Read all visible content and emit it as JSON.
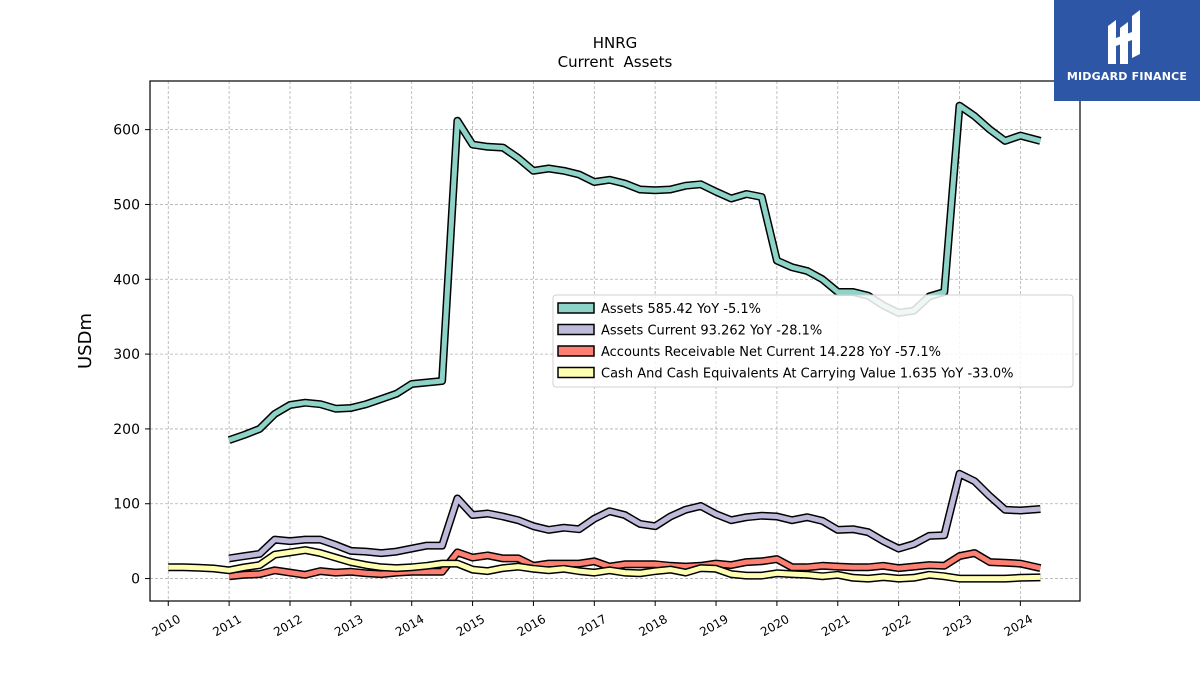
{
  "brand": {
    "name": "MIDGARD FINANCE",
    "logo_icon": "midgard-logo-icon",
    "background": "#2d57a6"
  },
  "chart_data": {
    "type": "line",
    "title": "HNRG",
    "subtitle": "Current  Assets",
    "ylabel": "USDm",
    "xlabel": "",
    "xlim": [
      2009.7,
      2024.98
    ],
    "ylim": [
      -30,
      665
    ],
    "x_ticks": [
      2010,
      2011,
      2012,
      2013,
      2014,
      2015,
      2016,
      2017,
      2018,
      2019,
      2020,
      2021,
      2022,
      2023,
      2024
    ],
    "x_tick_labels": [
      "2010",
      "2011",
      "2012",
      "2013",
      "2014",
      "2015",
      "2016",
      "2017",
      "2018",
      "2019",
      "2020",
      "2021",
      "2022",
      "2023",
      "2024"
    ],
    "y_ticks": [
      0,
      100,
      200,
      300,
      400,
      500,
      600
    ],
    "y_tick_labels": [
      "0",
      "100",
      "200",
      "300",
      "400",
      "500",
      "600"
    ],
    "grid": true,
    "legend_position": "center-right",
    "series": [
      {
        "name": "Assets",
        "legend_label": "Assets  585.42 YoY -5.1%",
        "color": "#8dd3c7",
        "points": [
          [
            2011.0,
            185
          ],
          [
            2011.25,
            192
          ],
          [
            2011.5,
            200
          ],
          [
            2011.75,
            220
          ],
          [
            2012.0,
            232
          ],
          [
            2012.25,
            235
          ],
          [
            2012.5,
            233
          ],
          [
            2012.75,
            227
          ],
          [
            2013.0,
            228
          ],
          [
            2013.25,
            233
          ],
          [
            2013.5,
            240
          ],
          [
            2013.75,
            247
          ],
          [
            2014.0,
            260
          ],
          [
            2014.25,
            262
          ],
          [
            2014.5,
            264
          ],
          [
            2014.75,
            612
          ],
          [
            2015.0,
            580
          ],
          [
            2015.25,
            577
          ],
          [
            2015.5,
            576
          ],
          [
            2015.75,
            562
          ],
          [
            2016.0,
            545
          ],
          [
            2016.25,
            548
          ],
          [
            2016.5,
            545
          ],
          [
            2016.75,
            540
          ],
          [
            2017.0,
            530
          ],
          [
            2017.25,
            533
          ],
          [
            2017.5,
            528
          ],
          [
            2017.75,
            520
          ],
          [
            2018.0,
            519
          ],
          [
            2018.25,
            520
          ],
          [
            2018.5,
            525
          ],
          [
            2018.75,
            527
          ],
          [
            2019.0,
            517
          ],
          [
            2019.25,
            508
          ],
          [
            2019.5,
            514
          ],
          [
            2019.75,
            510
          ],
          [
            2020.0,
            425
          ],
          [
            2020.25,
            416
          ],
          [
            2020.5,
            411
          ],
          [
            2020.75,
            400
          ],
          [
            2021.0,
            383
          ],
          [
            2021.25,
            383
          ],
          [
            2021.5,
            378
          ],
          [
            2021.75,
            365
          ],
          [
            2022.0,
            355
          ],
          [
            2022.25,
            358
          ],
          [
            2022.5,
            377
          ],
          [
            2022.75,
            383
          ],
          [
            2023.0,
            632
          ],
          [
            2023.25,
            618
          ],
          [
            2023.5,
            600
          ],
          [
            2023.75,
            585
          ],
          [
            2024.0,
            592
          ],
          [
            2024.33,
            585
          ]
        ]
      },
      {
        "name": "Assets Current",
        "legend_label": "Assets Current  93.262 YoY -28.1%",
        "color": "#bebada",
        "points": [
          [
            2011.0,
            27
          ],
          [
            2011.25,
            30
          ],
          [
            2011.5,
            33
          ],
          [
            2011.75,
            52
          ],
          [
            2012.0,
            50
          ],
          [
            2012.25,
            52
          ],
          [
            2012.5,
            52
          ],
          [
            2012.75,
            45
          ],
          [
            2013.0,
            37
          ],
          [
            2013.25,
            36
          ],
          [
            2013.5,
            34
          ],
          [
            2013.75,
            36
          ],
          [
            2014.0,
            40
          ],
          [
            2014.25,
            44
          ],
          [
            2014.5,
            44
          ],
          [
            2014.75,
            107
          ],
          [
            2015.0,
            85
          ],
          [
            2015.25,
            87
          ],
          [
            2015.5,
            83
          ],
          [
            2015.75,
            78
          ],
          [
            2016.0,
            70
          ],
          [
            2016.25,
            65
          ],
          [
            2016.5,
            68
          ],
          [
            2016.75,
            66
          ],
          [
            2017.0,
            80
          ],
          [
            2017.25,
            90
          ],
          [
            2017.5,
            85
          ],
          [
            2017.75,
            73
          ],
          [
            2018.0,
            70
          ],
          [
            2018.25,
            83
          ],
          [
            2018.5,
            92
          ],
          [
            2018.75,
            97
          ],
          [
            2019.0,
            86
          ],
          [
            2019.25,
            78
          ],
          [
            2019.5,
            82
          ],
          [
            2019.75,
            84
          ],
          [
            2020.0,
            83
          ],
          [
            2020.25,
            78
          ],
          [
            2020.5,
            82
          ],
          [
            2020.75,
            77
          ],
          [
            2021.0,
            65
          ],
          [
            2021.25,
            66
          ],
          [
            2021.5,
            62
          ],
          [
            2021.75,
            50
          ],
          [
            2022.0,
            40
          ],
          [
            2022.25,
            46
          ],
          [
            2022.5,
            57
          ],
          [
            2022.75,
            58
          ],
          [
            2023.0,
            140
          ],
          [
            2023.25,
            130
          ],
          [
            2023.5,
            110
          ],
          [
            2023.75,
            92
          ],
          [
            2024.0,
            91
          ],
          [
            2024.33,
            93
          ]
        ]
      },
      {
        "name": "Accounts Receivable Net Current",
        "legend_label": "Accounts Receivable Net Current  14.228 YoY -57.1%",
        "color": "#fb8072",
        "points": [
          [
            2011.0,
            3
          ],
          [
            2011.25,
            5
          ],
          [
            2011.5,
            6
          ],
          [
            2011.75,
            11
          ],
          [
            2012.0,
            8
          ],
          [
            2012.25,
            5
          ],
          [
            2012.5,
            10
          ],
          [
            2012.75,
            8
          ],
          [
            2013.0,
            9
          ],
          [
            2013.25,
            7
          ],
          [
            2013.5,
            6
          ],
          [
            2013.75,
            8
          ],
          [
            2014.0,
            9
          ],
          [
            2014.25,
            9
          ],
          [
            2014.5,
            9
          ],
          [
            2014.75,
            35
          ],
          [
            2015.0,
            28
          ],
          [
            2015.25,
            31
          ],
          [
            2015.5,
            27
          ],
          [
            2015.75,
            27
          ],
          [
            2016.0,
            17
          ],
          [
            2016.25,
            20
          ],
          [
            2016.5,
            20
          ],
          [
            2016.75,
            20
          ],
          [
            2017.0,
            23
          ],
          [
            2017.25,
            16
          ],
          [
            2017.5,
            19
          ],
          [
            2017.75,
            19
          ],
          [
            2018.0,
            19
          ],
          [
            2018.25,
            17
          ],
          [
            2018.5,
            16
          ],
          [
            2018.75,
            17
          ],
          [
            2019.0,
            20
          ],
          [
            2019.25,
            18
          ],
          [
            2019.5,
            22
          ],
          [
            2019.75,
            23
          ],
          [
            2020.0,
            26
          ],
          [
            2020.25,
            15
          ],
          [
            2020.5,
            15
          ],
          [
            2020.75,
            17
          ],
          [
            2021.0,
            16
          ],
          [
            2021.25,
            15
          ],
          [
            2021.5,
            15
          ],
          [
            2021.75,
            17
          ],
          [
            2022.0,
            14
          ],
          [
            2022.25,
            16
          ],
          [
            2022.5,
            18
          ],
          [
            2022.75,
            17
          ],
          [
            2023.0,
            30
          ],
          [
            2023.25,
            34
          ],
          [
            2023.5,
            22
          ],
          [
            2023.75,
            21
          ],
          [
            2024.0,
            20
          ],
          [
            2024.33,
            14
          ]
        ]
      },
      {
        "name": "Cash And Cash Equivalents At Carrying Value",
        "legend_label": "Cash And Cash Equivalents At Carrying Value  1.635 YoY -33.0%",
        "color": "#ffffb3",
        "points": [
          [
            2010.0,
            15
          ],
          [
            2010.25,
            15
          ],
          [
            2010.5,
            14.5
          ],
          [
            2010.75,
            13.5
          ],
          [
            2011.0,
            11
          ],
          [
            2011.25,
            15
          ],
          [
            2011.5,
            18
          ],
          [
            2011.75,
            32
          ],
          [
            2012.0,
            35
          ],
          [
            2012.25,
            38
          ],
          [
            2012.5,
            34
          ],
          [
            2012.75,
            28
          ],
          [
            2013.0,
            22
          ],
          [
            2013.25,
            18
          ],
          [
            2013.5,
            15
          ],
          [
            2013.75,
            14
          ],
          [
            2014.0,
            15
          ],
          [
            2014.25,
            17
          ],
          [
            2014.5,
            20
          ],
          [
            2014.75,
            20
          ],
          [
            2015.0,
            12
          ],
          [
            2015.25,
            10
          ],
          [
            2015.5,
            14
          ],
          [
            2015.75,
            16
          ],
          [
            2016.0,
            13
          ],
          [
            2016.25,
            11
          ],
          [
            2016.5,
            13
          ],
          [
            2016.75,
            10
          ],
          [
            2017.0,
            8
          ],
          [
            2017.25,
            11
          ],
          [
            2017.5,
            8
          ],
          [
            2017.75,
            7
          ],
          [
            2018.0,
            10
          ],
          [
            2018.25,
            12
          ],
          [
            2018.5,
            8
          ],
          [
            2018.75,
            14
          ],
          [
            2019.0,
            13
          ],
          [
            2019.25,
            6
          ],
          [
            2019.5,
            4
          ],
          [
            2019.75,
            4
          ],
          [
            2020.0,
            7
          ],
          [
            2020.25,
            6
          ],
          [
            2020.5,
            5
          ],
          [
            2020.75,
            3
          ],
          [
            2021.0,
            5
          ],
          [
            2021.25,
            1
          ],
          [
            2021.5,
            0
          ],
          [
            2021.75,
            2
          ],
          [
            2022.0,
            0
          ],
          [
            2022.25,
            1
          ],
          [
            2022.5,
            5
          ],
          [
            2022.75,
            3
          ],
          [
            2023.0,
            0
          ],
          [
            2023.25,
            0
          ],
          [
            2023.5,
            0
          ],
          [
            2023.75,
            0
          ],
          [
            2024.0,
            1
          ],
          [
            2024.33,
            1.6
          ]
        ]
      }
    ]
  }
}
